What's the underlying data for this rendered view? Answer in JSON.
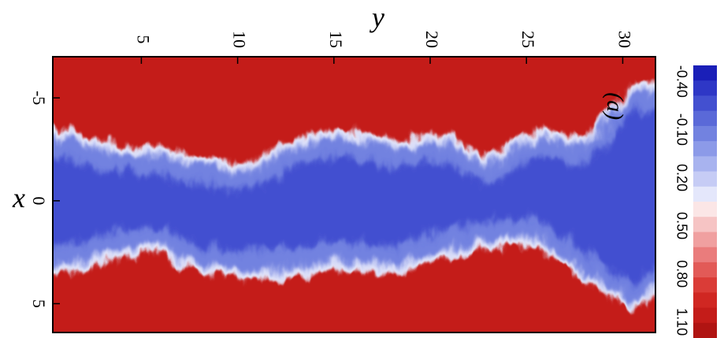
{
  "chart_data": {
    "type": "heatmap",
    "xlabel": "y",
    "ylabel": "x",
    "annotation": "(a)",
    "xlim": [
      0.4,
      31.7
    ],
    "ylim": [
      -7.0,
      6.4
    ],
    "x_ticks": [
      5,
      10,
      15,
      20,
      25,
      30
    ],
    "y_ticks": [
      -5,
      0,
      5
    ],
    "x_tick_labels": [
      "5",
      "10",
      "15",
      "20",
      "25",
      "30"
    ],
    "y_tick_labels": [
      "-5",
      "0",
      "5"
    ],
    "colorbar": {
      "ticks": [
        -0.4,
        -0.1,
        0.2,
        0.5,
        0.8,
        1.1
      ],
      "tick_labels": [
        "-0.40",
        "-0.10",
        "0.20",
        "0.50",
        "0.80",
        "1.10"
      ],
      "min": -0.5,
      "max": 1.2,
      "levels": 18,
      "colors": [
        "#1a1fb8",
        "#2e37c6",
        "#4350d0",
        "#5a69d8",
        "#7282e0",
        "#8c9ae8",
        "#a8b3ef",
        "#c6ccf5",
        "#e4e7fb",
        "#fbe6e6",
        "#f6c4c4",
        "#f0a0a0",
        "#ea7c7c",
        "#e25a57",
        "#da3c37",
        "#d02722",
        "#c41c19",
        "#b01412"
      ]
    },
    "field": "jet-like band of low values (blue, about -0.4 to 0.2) centred on x = 0, roughly |x| < 3 to 4, with a turbulent ragged interface, surrounded by high values (red, about 0.9 to 1.1)",
    "band_upper_edge": [
      {
        "y": 0.6,
        "x": -3.9
      },
      {
        "y": 3.0,
        "x": -2.5
      },
      {
        "y": 5.6,
        "x": -2.3
      },
      {
        "y": 8.0,
        "x": -1.8
      },
      {
        "y": 10.5,
        "x": -1.5
      },
      {
        "y": 13.0,
        "x": -2.7
      },
      {
        "y": 15.5,
        "x": -3.2
      },
      {
        "y": 18.0,
        "x": -2.6
      },
      {
        "y": 20.5,
        "x": -3.0
      },
      {
        "y": 23.0,
        "x": -1.8
      },
      {
        "y": 25.5,
        "x": -3.2
      },
      {
        "y": 28.0,
        "x": -2.7
      },
      {
        "y": 30.5,
        "x": -5.3
      },
      {
        "y": 31.6,
        "x": -5.6
      }
    ],
    "band_lower_edge": [
      {
        "y": 0.6,
        "x": 3.8
      },
      {
        "y": 3.0,
        "x": 2.7
      },
      {
        "y": 5.6,
        "x": 2.2
      },
      {
        "y": 8.0,
        "x": 3.2
      },
      {
        "y": 10.5,
        "x": 3.5
      },
      {
        "y": 13.0,
        "x": 3.3
      },
      {
        "y": 15.5,
        "x": 3.0
      },
      {
        "y": 18.0,
        "x": 3.2
      },
      {
        "y": 20.5,
        "x": 2.5
      },
      {
        "y": 23.0,
        "x": 2.0
      },
      {
        "y": 25.5,
        "x": 1.8
      },
      {
        "y": 28.0,
        "x": 3.5
      },
      {
        "y": 30.5,
        "x": 5.1
      },
      {
        "y": 31.6,
        "x": 2.8
      }
    ]
  }
}
